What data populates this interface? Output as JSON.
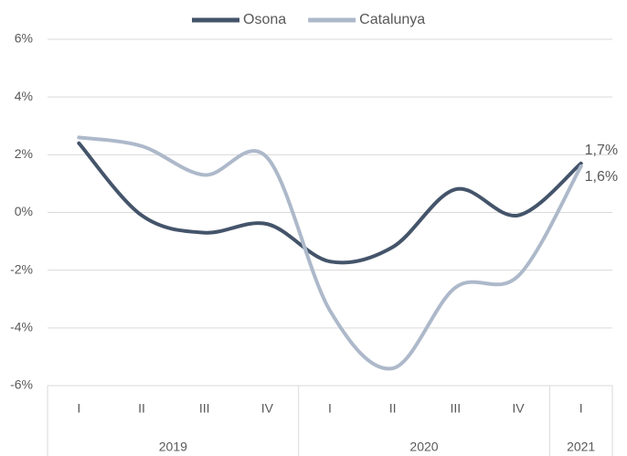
{
  "chart_data": {
    "type": "line",
    "groups": [
      {
        "label": "2019",
        "categories": [
          "I",
          "II",
          "III",
          "IV"
        ]
      },
      {
        "label": "2020",
        "categories": [
          "I",
          "II",
          "III",
          "IV"
        ]
      },
      {
        "label": "2021",
        "categories": [
          "I"
        ]
      }
    ],
    "series": [
      {
        "name": "Osona",
        "color": "#44546a",
        "values": [
          2.4,
          -0.1,
          -0.7,
          -0.4,
          -1.7,
          -1.2,
          0.8,
          -0.1,
          1.7
        ],
        "value_labels": [
          null,
          null,
          null,
          null,
          null,
          null,
          null,
          null,
          "1,7%"
        ]
      },
      {
        "name": "Catalunya",
        "color": "#adb9ca",
        "values": [
          2.6,
          2.3,
          1.3,
          1.9,
          -3.4,
          -5.4,
          -2.6,
          -2.2,
          1.6
        ],
        "value_labels": [
          null,
          null,
          null,
          null,
          null,
          null,
          null,
          null,
          "1,6%"
        ]
      }
    ],
    "ylim": [
      -6,
      6
    ],
    "yticks": [
      {
        "value": -6,
        "label": "-6%"
      },
      {
        "value": -4,
        "label": "-4%"
      },
      {
        "value": -2,
        "label": "-2%"
      },
      {
        "value": 0,
        "label": "0%"
      },
      {
        "value": 2,
        "label": "2%"
      },
      {
        "value": 4,
        "label": "4%"
      },
      {
        "value": 6,
        "label": "6%"
      }
    ],
    "grid": true,
    "legend": "top"
  }
}
